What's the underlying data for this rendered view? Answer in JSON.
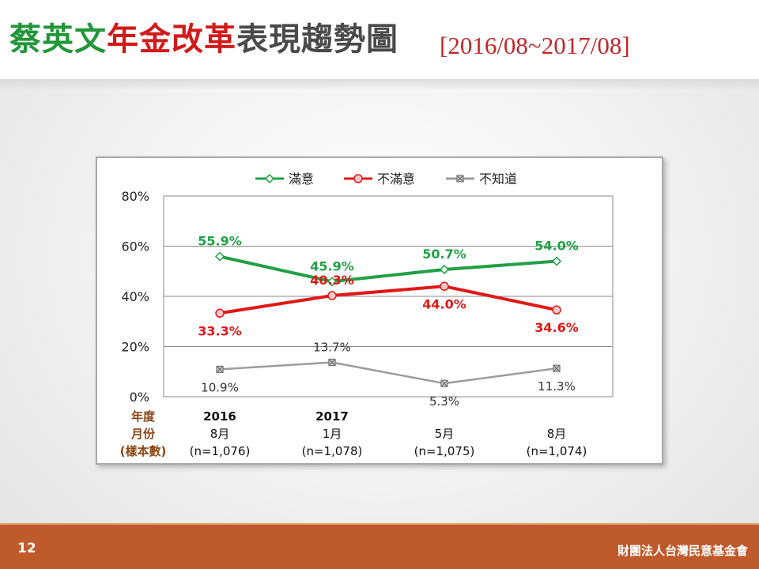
{
  "slide": {
    "title_green": "蔡英文",
    "title_red": "年金改革",
    "title_dark": "表現趨勢圖",
    "subtitle": "[2016/08~2017/08]",
    "page_number": "12",
    "organization": "財團法人台灣民意基金會"
  },
  "chart_data": {
    "type": "line",
    "title": "",
    "xlabel": "",
    "ylabel": "",
    "ylim": [
      0,
      80
    ],
    "yticks": [
      "0%",
      "20%",
      "40%",
      "60%",
      "80%"
    ],
    "grid": "horizontal",
    "legend_position": "top",
    "row_labels": [
      "年度",
      "月份",
      "(樣本數)"
    ],
    "categories": [
      {
        "year": "2016",
        "month": "8月",
        "n": "(n=1,076)"
      },
      {
        "year": "2017",
        "month": "1月",
        "n": "(n=1,078)"
      },
      {
        "year": "",
        "month": "5月",
        "n": "(n=1,075)"
      },
      {
        "year": "",
        "month": "8月",
        "n": "(n=1,074)"
      }
    ],
    "series": [
      {
        "name": "滿意",
        "values": [
          55.9,
          45.9,
          50.7,
          54.0
        ],
        "labels": [
          "55.9%",
          "45.9%",
          "50.7%",
          "54.0%"
        ],
        "color": "#22a046",
        "marker": "diamond"
      },
      {
        "name": "不滿意",
        "values": [
          33.3,
          40.3,
          44.0,
          34.6
        ],
        "labels": [
          "33.3%",
          "40.3%",
          "44.0%",
          "34.6%"
        ],
        "color": "#e01818",
        "marker": "circle"
      },
      {
        "name": "不知道",
        "values": [
          10.9,
          13.7,
          5.3,
          11.3
        ],
        "labels": [
          "10.9%",
          "13.7%",
          "5.3%",
          "11.3%"
        ],
        "color": "#9c9c9c",
        "marker": "square-x"
      }
    ]
  }
}
